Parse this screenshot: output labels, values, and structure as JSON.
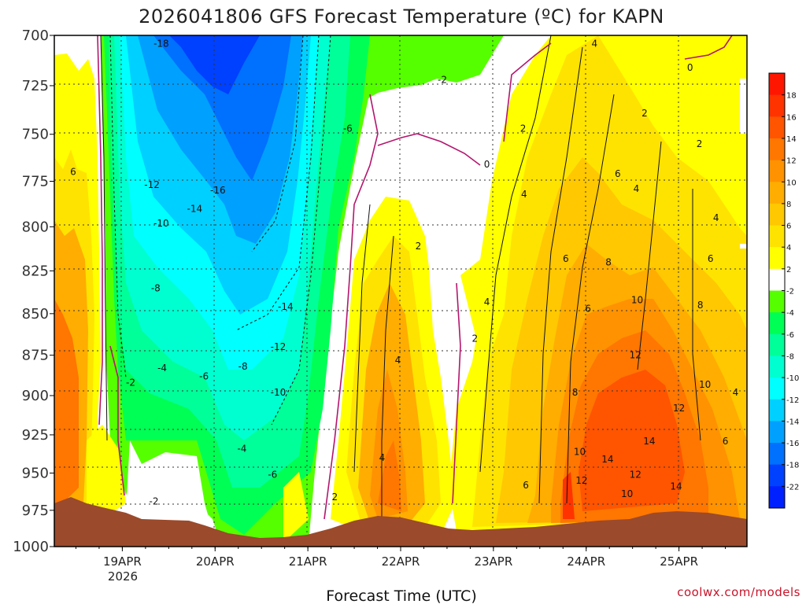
{
  "chart_data": {
    "type": "heatmap",
    "title": "2026041806 GFS Forecast Temperature (ºC) for KAPN",
    "xlabel": "Forecast Time (UTC)",
    "ylabel": "",
    "y_axis": {
      "ticks": [
        "700",
        "725",
        "750",
        "775",
        "800",
        "825",
        "850",
        "875",
        "900",
        "925",
        "950",
        "975",
        "1000"
      ],
      "values": [
        700,
        725,
        750,
        775,
        800,
        825,
        850,
        875,
        900,
        925,
        950,
        975,
        1000
      ],
      "range": [
        700,
        1000
      ],
      "inverted": true,
      "units": "hPa"
    },
    "x_axis": {
      "ticks": [
        "19APR",
        "20APR",
        "21APR",
        "22APR",
        "23APR",
        "24APR",
        "25APR"
      ],
      "tick_day_offsets": [
        1,
        2,
        3,
        4,
        5,
        6,
        7
      ],
      "range_day_offsets": [
        0.267,
        7.733
      ],
      "year_label": "2026"
    },
    "colorbar": {
      "labels": [
        "18",
        "16",
        "14",
        "12",
        "10",
        "8",
        "6",
        "4",
        "2",
        "-2",
        "-4",
        "-6",
        "-8",
        "-10",
        "-12",
        "-14",
        "-16",
        "-18",
        "-22"
      ],
      "levels": [
        20,
        18,
        16,
        14,
        12,
        10,
        8,
        6,
        4,
        2,
        -2,
        -4,
        -6,
        -8,
        -10,
        -12,
        -14,
        -16,
        -18,
        -22,
        -24
      ],
      "colors": [
        "#ff1600",
        "#ff3300",
        "#ff5400",
        "#ff7600",
        "#ff9200",
        "#ffad00",
        "#ffc800",
        "#ffe300",
        "#ffff00",
        "#ffffff",
        "#55ff00",
        "#00ff55",
        "#00ff99",
        "#00ffd0",
        "#00ffff",
        "#00d0ff",
        "#00a0ff",
        "#0070ff",
        "#0040ff",
        "#0020ff"
      ]
    },
    "contour_labels": [
      {
        "text": "-18",
        "day": 1.42,
        "p": 704
      },
      {
        "text": "-16",
        "day": 2.03,
        "p": 780
      },
      {
        "text": "-14",
        "day": 1.78,
        "p": 790
      },
      {
        "text": "-12",
        "day": 1.32,
        "p": 777
      },
      {
        "text": "-10",
        "day": 1.42,
        "p": 798
      },
      {
        "text": "-8",
        "day": 1.36,
        "p": 835
      },
      {
        "text": "-6",
        "day": 3.43,
        "p": 747
      },
      {
        "text": "-14",
        "day": 2.76,
        "p": 846
      },
      {
        "text": "-12",
        "day": 2.68,
        "p": 870
      },
      {
        "text": "-10",
        "day": 2.68,
        "p": 898
      },
      {
        "text": "-8",
        "day": 2.3,
        "p": 882
      },
      {
        "text": "-6",
        "day": 1.88,
        "p": 888
      },
      {
        "text": "-4",
        "day": 1.43,
        "p": 883
      },
      {
        "text": "-4",
        "day": 2.29,
        "p": 934
      },
      {
        "text": "-6",
        "day": 2.62,
        "p": 951
      },
      {
        "text": "-2",
        "day": 1.09,
        "p": 892
      },
      {
        "text": "-2",
        "day": 1.34,
        "p": 969
      },
      {
        "text": "-2",
        "day": 4.45,
        "p": 722
      },
      {
        "text": "0",
        "day": 4.93,
        "p": 766
      },
      {
        "text": "2",
        "day": 3.29,
        "p": 966
      },
      {
        "text": "2",
        "day": 4.19,
        "p": 811
      },
      {
        "text": "2",
        "day": 4.8,
        "p": 865
      },
      {
        "text": "2",
        "day": 5.32,
        "p": 747
      },
      {
        "text": "2",
        "day": 6.63,
        "p": 739
      },
      {
        "text": "2",
        "day": 7.22,
        "p": 755
      },
      {
        "text": "0",
        "day": 7.12,
        "p": 716
      },
      {
        "text": "4",
        "day": 3.8,
        "p": 940
      },
      {
        "text": "4",
        "day": 3.97,
        "p": 878
      },
      {
        "text": "4",
        "day": 4.93,
        "p": 843
      },
      {
        "text": "4",
        "day": 5.33,
        "p": 782
      },
      {
        "text": "4",
        "day": 6.09,
        "p": 704
      },
      {
        "text": "4",
        "day": 6.54,
        "p": 779
      },
      {
        "text": "4",
        "day": 7.4,
        "p": 795
      },
      {
        "text": "4",
        "day": 7.61,
        "p": 898
      },
      {
        "text": "6",
        "day": 0.47,
        "p": 770
      },
      {
        "text": "6",
        "day": 5.35,
        "p": 958
      },
      {
        "text": "6",
        "day": 5.78,
        "p": 818
      },
      {
        "text": "6",
        "day": 6.02,
        "p": 847
      },
      {
        "text": "6",
        "day": 6.34,
        "p": 771
      },
      {
        "text": "6",
        "day": 7.34,
        "p": 818
      },
      {
        "text": "6",
        "day": 7.5,
        "p": 929
      },
      {
        "text": "8",
        "day": 5.88,
        "p": 898
      },
      {
        "text": "8",
        "day": 6.24,
        "p": 820
      },
      {
        "text": "8",
        "day": 7.23,
        "p": 845
      },
      {
        "text": "10",
        "day": 5.93,
        "p": 936
      },
      {
        "text": "10",
        "day": 6.55,
        "p": 842
      },
      {
        "text": "10",
        "day": 6.44,
        "p": 964
      },
      {
        "text": "10",
        "day": 7.28,
        "p": 893
      },
      {
        "text": "12",
        "day": 5.95,
        "p": 955
      },
      {
        "text": "12",
        "day": 6.53,
        "p": 875
      },
      {
        "text": "12",
        "day": 6.53,
        "p": 951
      },
      {
        "text": "12",
        "day": 7.0,
        "p": 908
      },
      {
        "text": "14",
        "day": 6.23,
        "p": 941
      },
      {
        "text": "14",
        "day": 6.68,
        "p": 929
      },
      {
        "text": "14",
        "day": 6.97,
        "p": 959
      }
    ]
  },
  "credit": "coolwx.com/models"
}
